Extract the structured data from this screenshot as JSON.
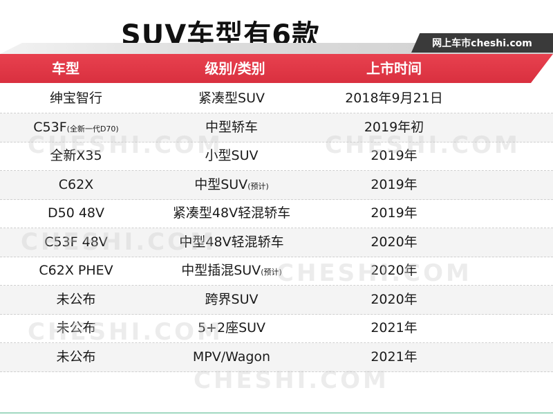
{
  "title": "SUV车型有6款",
  "watermark_tag": "网上车市cheshi.com",
  "watermark_text": "CHESHI.COM",
  "headers": [
    "车型",
    "级别/类别",
    "上市时间"
  ],
  "rows": [
    {
      "model": "绅宝智行",
      "model_sub": "",
      "class": "紧凑型SUV",
      "class_sub": "",
      "date": "2018年9月21日"
    },
    {
      "model": "C53F",
      "model_sub": "(全新一代D70)",
      "class": "中型轿车",
      "class_sub": "",
      "date": "2019年初"
    },
    {
      "model": "全新X35",
      "model_sub": "",
      "class": "小型SUV",
      "class_sub": "",
      "date": "2019年"
    },
    {
      "model": "C62X",
      "model_sub": "",
      "class": "中型SUV",
      "class_sub": "(预计)",
      "date": "2019年"
    },
    {
      "model": "D50 48V",
      "model_sub": "",
      "class": "紧凑型48V轻混轿车",
      "class_sub": "",
      "date": "2019年"
    },
    {
      "model": "C53F 48V",
      "model_sub": "",
      "class": "中型48V轻混轿车",
      "class_sub": "",
      "date": "2020年"
    },
    {
      "model": "C62X PHEV",
      "model_sub": "",
      "class": "中型插混SUV",
      "class_sub": "(预计)",
      "date": "2020年"
    },
    {
      "model": "未公布",
      "model_sub": "",
      "class": "跨界SUV",
      "class_sub": "",
      "date": "2020年"
    },
    {
      "model": "未公布",
      "model_sub": "",
      "class": "5+2座SUV",
      "class_sub": "",
      "date": "2021年"
    },
    {
      "model": "未公布",
      "model_sub": "",
      "class": "MPV/Wagon",
      "class_sub": "",
      "date": "2021年"
    }
  ]
}
